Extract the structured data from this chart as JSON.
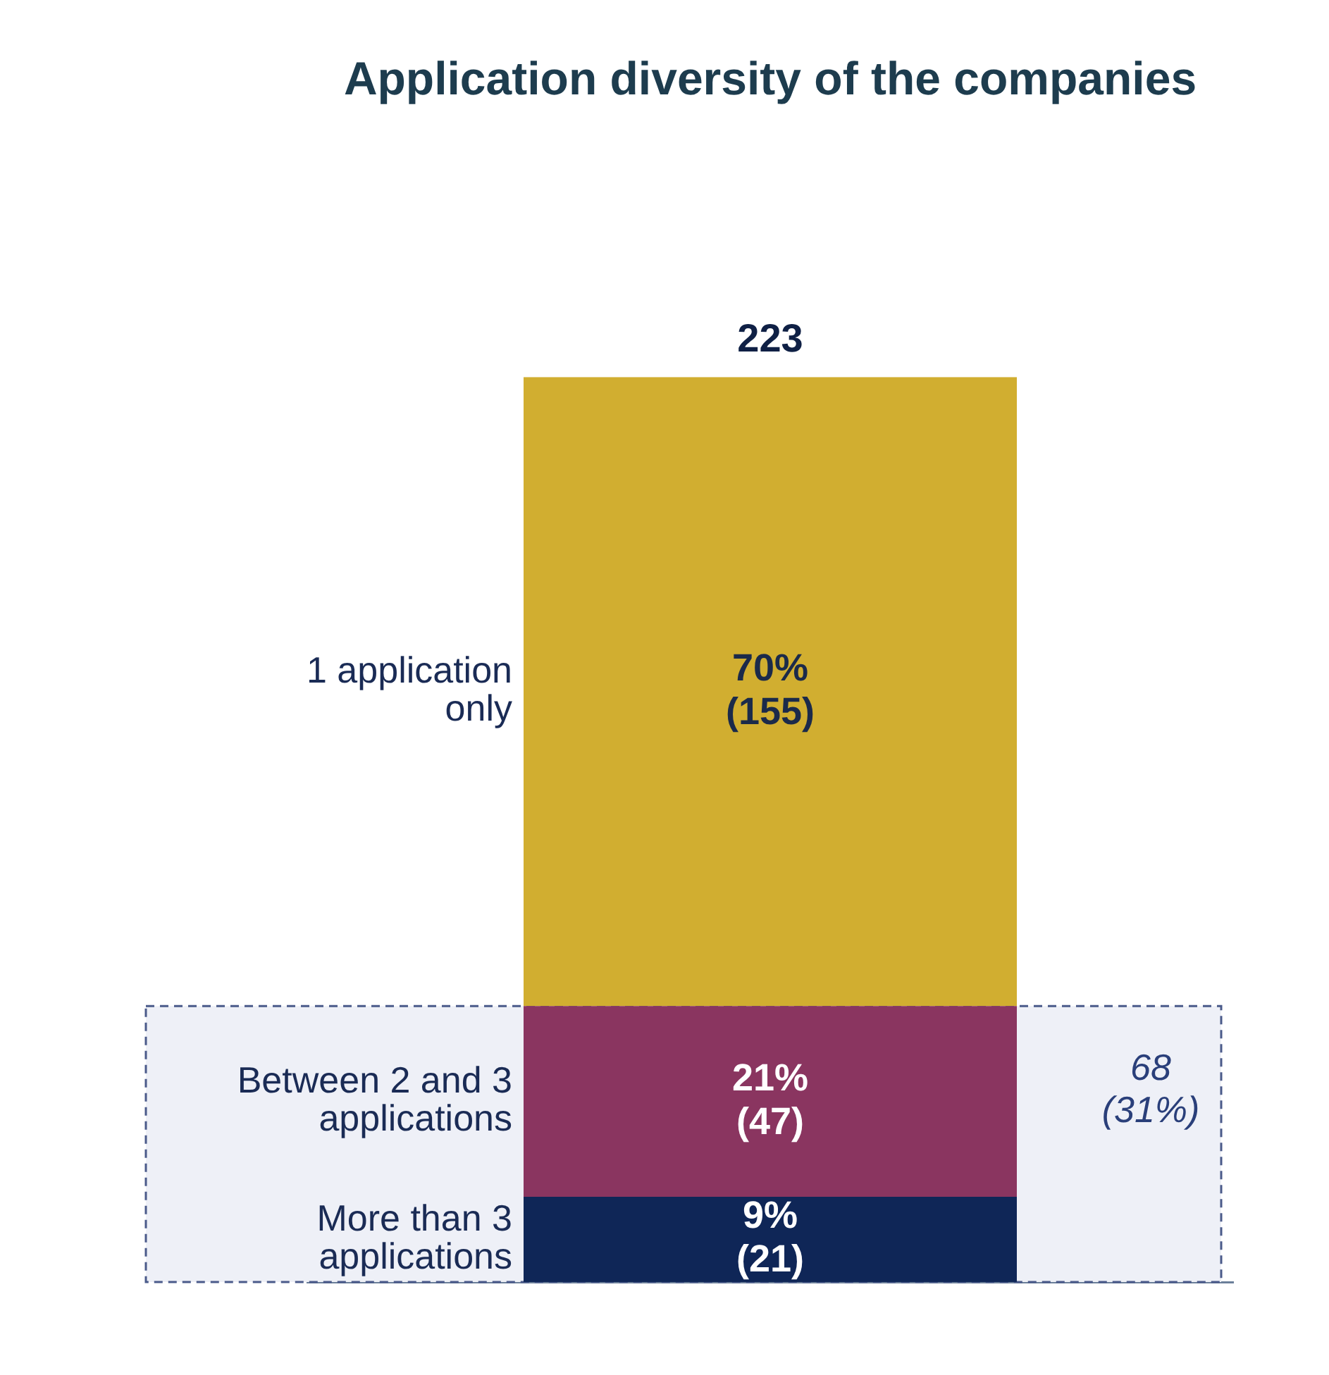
{
  "chart_data": {
    "type": "bar",
    "title": "Application diversity of the companies",
    "stacked": true,
    "categories": [
      null
    ],
    "series": [
      {
        "name": "More than 3 applications",
        "color": "#0f2657",
        "values": [
          21
        ],
        "value_labels": [
          "9%\n(21)"
        ]
      },
      {
        "name": "Between 2 and 3 applications",
        "color": "#8a3560",
        "values": [
          47
        ],
        "value_labels": [
          "21%\n(47)"
        ]
      },
      {
        "name": "1 application only",
        "color": "#d1ae30",
        "values": [
          155
        ],
        "value_labels": [
          "70%\n(155)"
        ]
      }
    ],
    "totals": [
      "223"
    ],
    "bands": [
      {
        "axis": "y",
        "from": 0,
        "to": 68,
        "label": "68\n(31%)",
        "color": "#eef0f7"
      }
    ]
  }
}
